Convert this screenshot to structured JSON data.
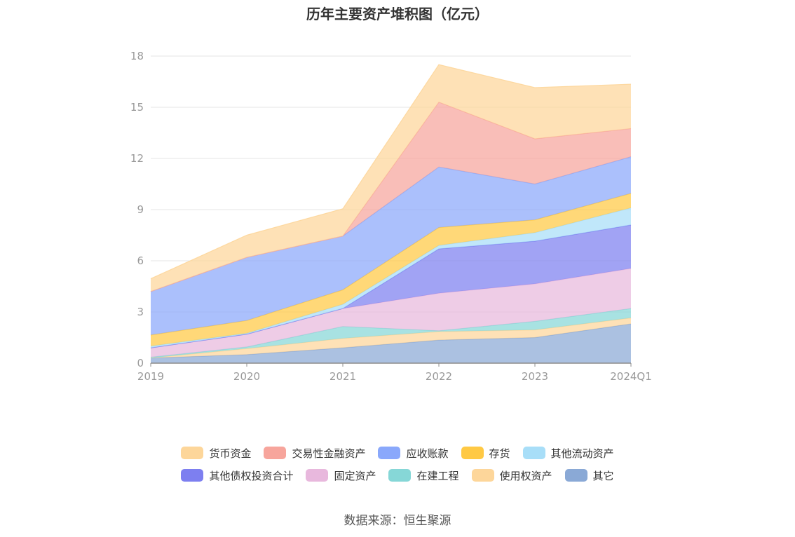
{
  "chart_data": {
    "type": "area",
    "stacked": true,
    "title": "历年主要资产堆积图（亿元）",
    "categories": [
      "2019",
      "2020",
      "2021",
      "2022",
      "2023",
      "2024Q1"
    ],
    "ylim": [
      0,
      18
    ],
    "yticks": [
      "0",
      "3",
      "6",
      "9",
      "12",
      "15",
      "18"
    ],
    "grid": true,
    "legend_position": "bottom",
    "series": [
      {
        "name": "其它",
        "color": "#8aa9d6",
        "values": [
          0.3,
          0.5,
          0.9,
          1.35,
          1.5,
          2.3
        ]
      },
      {
        "name": "使用权资产",
        "color": "#fdd69a",
        "values": [
          0.0,
          0.35,
          0.55,
          0.5,
          0.45,
          0.35
        ]
      },
      {
        "name": "在建工程",
        "color": "#86d7d7",
        "values": [
          0.05,
          0.1,
          0.7,
          0.05,
          0.5,
          0.55
        ]
      },
      {
        "name": "固定资产",
        "color": "#e8b8dd",
        "values": [
          0.55,
          0.75,
          1.05,
          2.2,
          2.2,
          2.35
        ]
      },
      {
        "name": "其他债权投资合计",
        "color": "#7d7ff0",
        "values": [
          0.0,
          0.0,
          0.0,
          2.6,
          2.5,
          2.55
        ]
      },
      {
        "name": "其他流动资产",
        "color": "#a8def8",
        "values": [
          0.1,
          0.05,
          0.25,
          0.2,
          0.5,
          1.0
        ]
      },
      {
        "name": "存货",
        "color": "#ffc944",
        "values": [
          0.65,
          0.75,
          0.85,
          1.05,
          0.75,
          0.85
        ]
      },
      {
        "name": "应收账款",
        "color": "#8aa8fb",
        "values": [
          2.55,
          3.7,
          3.15,
          3.55,
          2.1,
          2.15
        ]
      },
      {
        "name": "交易性金融资产",
        "color": "#f7a59c",
        "values": [
          0.0,
          0.0,
          0.0,
          3.8,
          2.65,
          1.65
        ]
      },
      {
        "name": "货币资金",
        "color": "#fdd69a",
        "values": [
          0.75,
          1.3,
          1.6,
          2.2,
          3.0,
          2.6
        ]
      }
    ],
    "legend_order": [
      "货币资金",
      "交易性金融资产",
      "应收账款",
      "存货",
      "其他流动资产",
      "其他债权投资合计",
      "固定资产",
      "在建工程",
      "使用权资产",
      "其它"
    ]
  },
  "source": "数据来源：恒生聚源"
}
